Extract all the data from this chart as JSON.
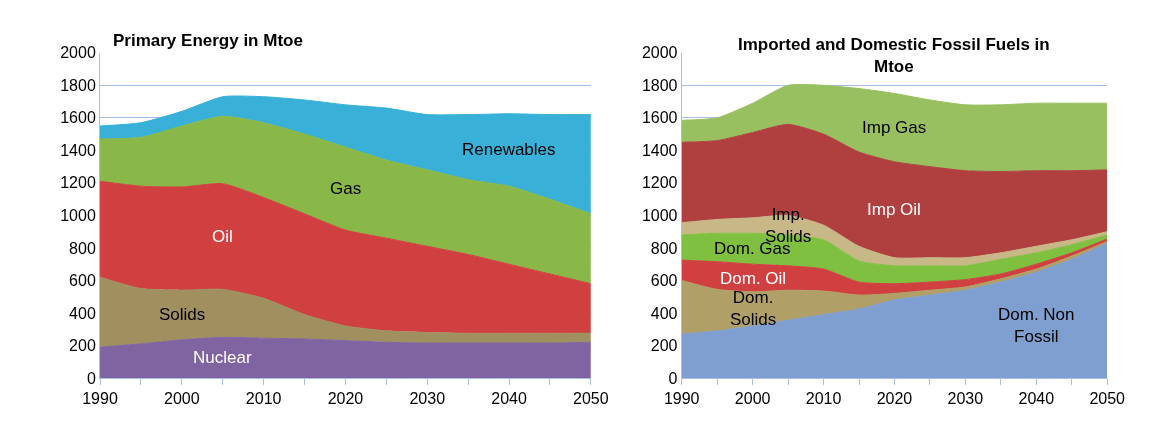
{
  "chart_data": [
    {
      "type": "area",
      "title": "Primary Energy in Mtoe",
      "stacked": true,
      "grid": "y",
      "x": [
        1990,
        1995,
        2000,
        2005,
        2010,
        2015,
        2020,
        2025,
        2030,
        2035,
        2040,
        2045,
        2050
      ],
      "xlim": [
        1990,
        2050
      ],
      "xticks": [
        1990,
        {
          "value": 1995,
          "label": null
        },
        2000,
        {
          "value": 2005,
          "label": null
        },
        2010,
        {
          "value": 2015,
          "label": null
        },
        2020,
        {
          "value": 2025,
          "label": null
        },
        2030,
        {
          "value": 2035,
          "label": null
        },
        2040,
        {
          "value": 2045,
          "label": null
        },
        2050
      ],
      "ylim": [
        0,
        2000
      ],
      "yticks": [
        0,
        200,
        400,
        600,
        800,
        1000,
        1200,
        1400,
        1600,
        1800,
        2000
      ],
      "series": [
        {
          "name": "Nuclear",
          "color": "#8064a2",
          "values": [
            190,
            210,
            235,
            250,
            245,
            240,
            230,
            220,
            215,
            215,
            215,
            215,
            220
          ]
        },
        {
          "name": "Solids",
          "color": "#a09060",
          "values": [
            430,
            340,
            305,
            295,
            245,
            150,
            90,
            70,
            65,
            60,
            60,
            60,
            55
          ]
        },
        {
          "name": "Oil",
          "color": "#d04040",
          "values": [
            590,
            630,
            635,
            650,
            620,
            620,
            590,
            570,
            530,
            485,
            425,
            365,
            305
          ]
        },
        {
          "name": "Gas",
          "color": "#8ab848",
          "values": [
            260,
            300,
            375,
            415,
            460,
            490,
            510,
            480,
            470,
            460,
            480,
            460,
            430
          ]
        },
        {
          "name": "Renewables",
          "color": "#38b0d8",
          "values": [
            80,
            90,
            90,
            120,
            160,
            210,
            260,
            320,
            340,
            400,
            445,
            520,
            610
          ]
        }
      ]
    },
    {
      "type": "area",
      "title": "Imported and Domestic Fossil Fuels in Mtoe",
      "stacked": true,
      "grid": "y",
      "x": [
        1990,
        1995,
        2000,
        2005,
        2010,
        2015,
        2020,
        2025,
        2030,
        2035,
        2040,
        2045,
        2050
      ],
      "xlim": [
        1990,
        2050
      ],
      "xticks": [
        1990,
        {
          "value": 1995,
          "label": null
        },
        2000,
        {
          "value": 2005,
          "label": null
        },
        2010,
        {
          "value": 2015,
          "label": null
        },
        2020,
        {
          "value": 2025,
          "label": null
        },
        2030,
        {
          "value": 2035,
          "label": null
        },
        2040,
        {
          "value": 2045,
          "label": null
        },
        2050
      ],
      "ylim": [
        0,
        2000
      ],
      "yticks": [
        0,
        200,
        400,
        600,
        800,
        1000,
        1200,
        1400,
        1600,
        1800,
        2000
      ],
      "series": [
        {
          "name": "Dom. Non Fossil",
          "color": "#7f9fd0",
          "values": [
            270,
            290,
            320,
            355,
            390,
            425,
            480,
            510,
            540,
            590,
            650,
            730,
            830
          ]
        },
        {
          "name": "Dom. Solids",
          "color": "#b0a068",
          "values": [
            330,
            255,
            210,
            185,
            145,
            85,
            40,
            30,
            20,
            20,
            20,
            20,
            10
          ]
        },
        {
          "name": "Dom. Oil",
          "color": "#d04040",
          "values": [
            125,
            170,
            170,
            150,
            135,
            80,
            60,
            50,
            45,
            30,
            30,
            20,
            15
          ]
        },
        {
          "name": "Dom. Gas",
          "color": "#80c040",
          "values": [
            155,
            175,
            190,
            190,
            180,
            130,
            110,
            100,
            85,
            90,
            70,
            50,
            25
          ]
        },
        {
          "name": "Imp. Solids",
          "color": "#c8b888",
          "values": [
            75,
            85,
            95,
            120,
            90,
            90,
            50,
            50,
            50,
            40,
            40,
            30,
            20
          ]
        },
        {
          "name": "Imp Oil",
          "color": "#b04040",
          "values": [
            495,
            485,
            525,
            560,
            560,
            580,
            590,
            560,
            535,
            500,
            465,
            425,
            380
          ]
        },
        {
          "name": "Imp Gas",
          "color": "#98c060",
          "values": [
            135,
            140,
            180,
            240,
            300,
            390,
            420,
            410,
            405,
            410,
            415,
            415,
            410
          ]
        }
      ]
    }
  ]
}
